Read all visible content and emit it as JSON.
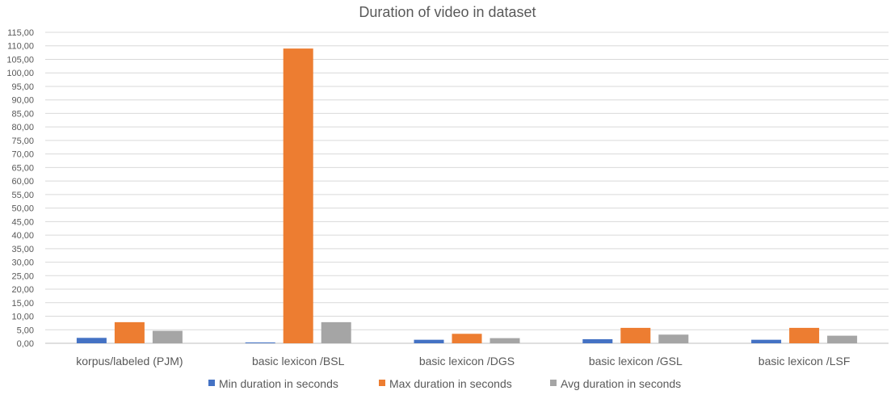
{
  "chart_data": {
    "type": "bar",
    "title": "Duration of video in dataset",
    "xlabel": "",
    "ylabel": "",
    "ylim": [
      0,
      115
    ],
    "ytick_step": 5,
    "tick_labels": [
      "0,00",
      "5,00",
      "10,00",
      "15,00",
      "20,00",
      "25,00",
      "30,00",
      "35,00",
      "40,00",
      "45,00",
      "50,00",
      "55,00",
      "60,00",
      "65,00",
      "70,00",
      "75,00",
      "80,00",
      "85,00",
      "90,00",
      "95,00",
      "100,00",
      "105,00",
      "110,00",
      "115,00"
    ],
    "categories": [
      "korpus/labeled (PJM)",
      "basic lexicon /BSL",
      "basic lexicon /DGS",
      "basic lexicon /GSL",
      "basic lexicon /LSF"
    ],
    "series": [
      {
        "name": "Min duration in seconds",
        "color": "#4472c4",
        "values": [
          2.0,
          0.3,
          1.3,
          1.5,
          1.3
        ]
      },
      {
        "name": "Max duration in seconds",
        "color": "#ed7d31",
        "values": [
          7.8,
          109.0,
          3.5,
          5.7,
          5.7
        ]
      },
      {
        "name": "Avg duration in seconds",
        "color": "#a5a5a5",
        "values": [
          4.6,
          7.8,
          1.9,
          3.2,
          2.8
        ]
      }
    ],
    "grid": true,
    "legend": "bottom"
  }
}
